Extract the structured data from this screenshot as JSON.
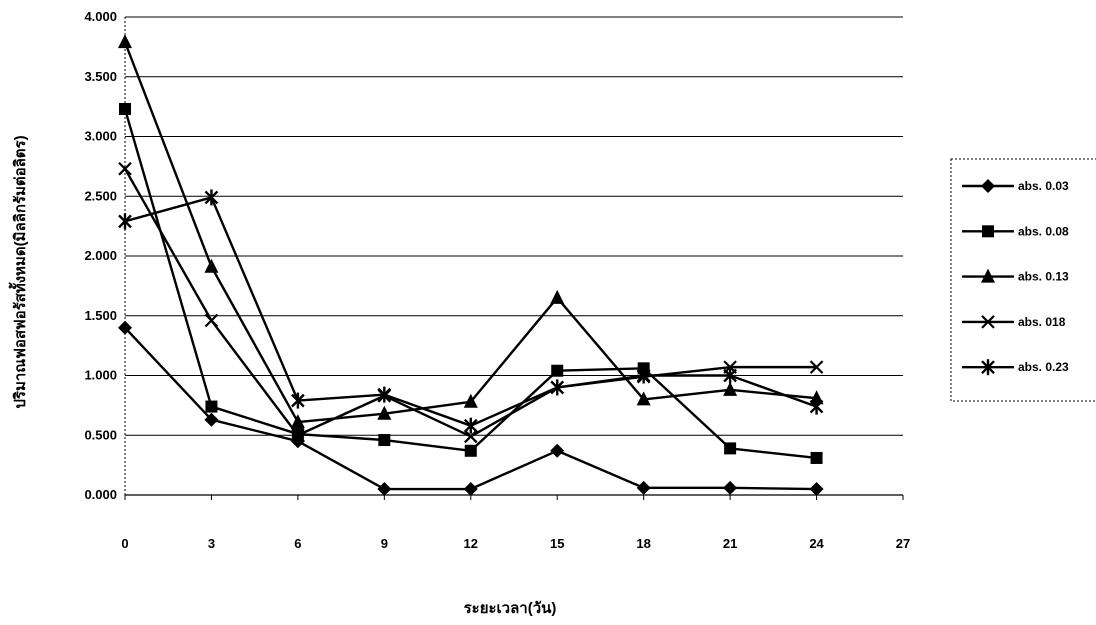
{
  "chart_data": {
    "type": "line",
    "xlabel": "ระยะเวลา(วัน)",
    "ylabel": "ปริมาณฟอสฟอรัสทั้งหมด(มิลลิกรัมต่อลิตร)",
    "x_ticks": [
      0,
      3,
      6,
      9,
      12,
      15,
      18,
      21,
      24,
      27
    ],
    "y_ticks": [
      "0.000",
      "0.500",
      "1.000",
      "1.500",
      "2.000",
      "2.500",
      "3.000",
      "3.500",
      "4.000"
    ],
    "xlim": [
      0,
      27
    ],
    "ylim": [
      0,
      4
    ],
    "grid": "horizontal",
    "legend_position": "right",
    "x": [
      0,
      3,
      6,
      9,
      12,
      15,
      18,
      21,
      24
    ],
    "series": [
      {
        "name": "abs. 0.03",
        "marker": "diamond",
        "values": [
          1.4,
          0.63,
          0.45,
          0.05,
          0.05,
          0.37,
          0.06,
          0.06,
          0.05
        ]
      },
      {
        "name": "abs. 0.08",
        "marker": "square",
        "values": [
          3.23,
          0.74,
          0.51,
          0.46,
          0.37,
          1.04,
          1.06,
          0.39,
          0.31
        ]
      },
      {
        "name": "abs. 0.13",
        "marker": "triangle",
        "values": [
          3.79,
          1.91,
          0.61,
          0.68,
          0.78,
          1.65,
          0.8,
          0.88,
          0.81
        ]
      },
      {
        "name": "abs. 018",
        "marker": "x",
        "values": [
          2.73,
          1.46,
          0.5,
          0.83,
          0.49,
          0.9,
          0.99,
          1.07,
          1.07
        ]
      },
      {
        "name": "abs. 0.23",
        "marker": "star",
        "values": [
          2.29,
          2.49,
          0.79,
          0.84,
          0.58,
          0.9,
          1.0,
          1.0,
          0.74
        ]
      }
    ]
  }
}
